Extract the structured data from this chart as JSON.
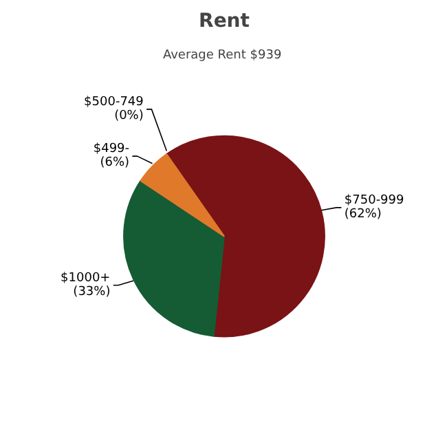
{
  "chart_data": {
    "type": "pie",
    "title": "Rent",
    "subtitle": "Average Rent  $939",
    "categories": [
      "$750-999",
      "$1000+",
      "$499-",
      "$500-749"
    ],
    "values": [
      62,
      33,
      6,
      0
    ],
    "value_labels": [
      "(62%)",
      "(33%)",
      "(6%)",
      "(0%)"
    ],
    "colors": [
      "#7a1315",
      "#155c35",
      "#e07a2a",
      "#d9a441"
    ]
  }
}
